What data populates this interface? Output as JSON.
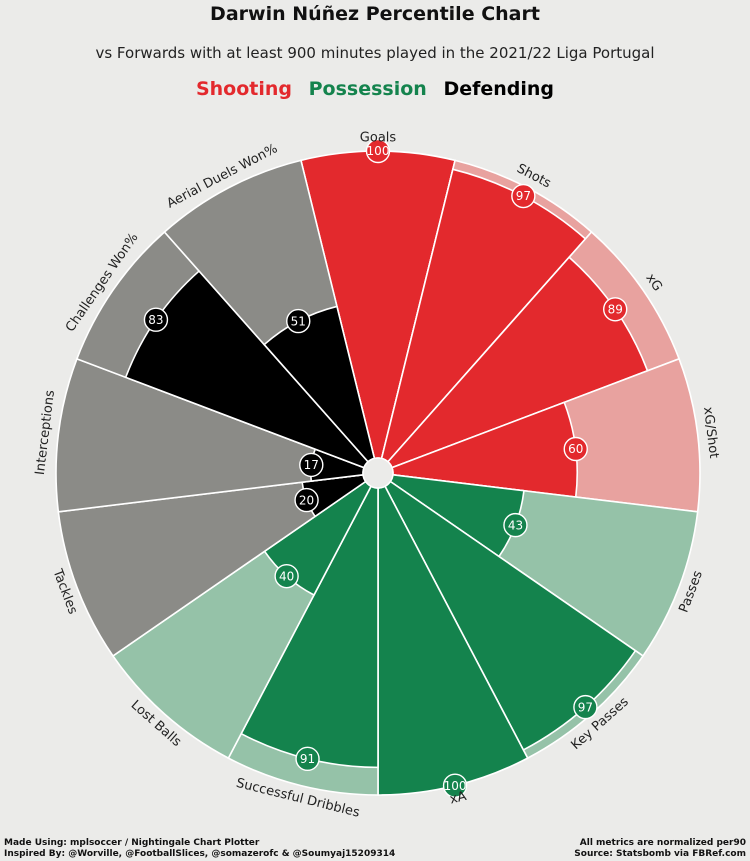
{
  "title": "Darwin Núñez Percentile Chart",
  "subtitle": "vs Forwards with at least 900 minutes played in the 2021/22 Liga Portugal",
  "legend": [
    {
      "label": "Shooting",
      "color": "#e3292d"
    },
    {
      "label": "Possession",
      "color": "#14834d"
    },
    {
      "label": "Defending",
      "color": "#000000"
    }
  ],
  "footer": {
    "left_line1": "Made Using: mplsoccer / Nightingale Chart Plotter",
    "left_line2": "Inspired By: @Worville, @FootballSlices, @somazerofc & @Soumyaj15209314",
    "right_line1": "All metrics are normalized per90",
    "right_line2": "Source: Statsbomb via FBRef.com"
  },
  "colors": {
    "background": "#ebebe9",
    "shooting_fill": "#e3292d",
    "shooting_bg": "#e8a29f",
    "possession_fill": "#14834d",
    "possession_bg": "#95c2a8",
    "defending_fill": "#000000",
    "defending_bg": "#8b8b87"
  },
  "chart_data": {
    "type": "pie",
    "variant": "nightingale-percentile",
    "scale_max": 100,
    "params": [
      {
        "label": "Goals",
        "value": 100,
        "group": "Shooting"
      },
      {
        "label": "Shots",
        "value": 97,
        "group": "Shooting"
      },
      {
        "label": "xG",
        "value": 89,
        "group": "Shooting"
      },
      {
        "label": "xG/Shot",
        "value": 60,
        "group": "Shooting"
      },
      {
        "label": "Passes",
        "value": 43,
        "group": "Possession"
      },
      {
        "label": "Key Passes",
        "value": 97,
        "group": "Possession"
      },
      {
        "label": "xA",
        "value": 100,
        "group": "Possession"
      },
      {
        "label": "Successful Dribbles",
        "value": 91,
        "group": "Possession"
      },
      {
        "label": "Lost Balls",
        "value": 40,
        "group": "Possession"
      },
      {
        "label": "Tackles",
        "value": 20,
        "group": "Defending"
      },
      {
        "label": "Interceptions",
        "value": 17,
        "group": "Defending"
      },
      {
        "label": "Challenges Won%",
        "value": 83,
        "group": "Defending"
      },
      {
        "label": "Aerial Duels Won%",
        "value": 51,
        "group": "Defending"
      }
    ]
  }
}
